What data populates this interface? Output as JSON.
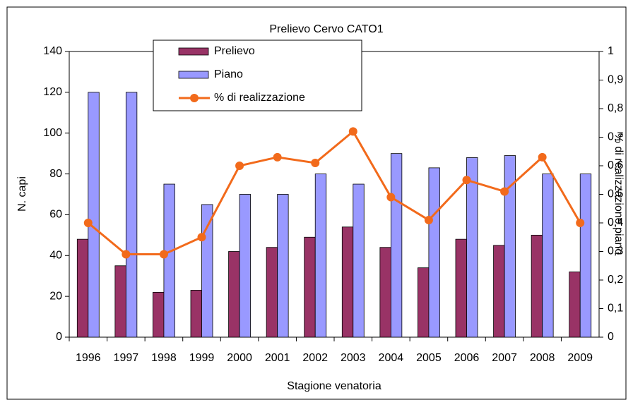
{
  "chart_data": {
    "type": "bar_line",
    "title": "Prelievo Cervo CATO1",
    "xlabel": "Stagione venatoria",
    "ylabel": "N. capi",
    "y2label": "% di realizzazione piano",
    "categories": [
      "1996",
      "1997",
      "1998",
      "1999",
      "2000",
      "2001",
      "2002",
      "2003",
      "2004",
      "2005",
      "2006",
      "2007",
      "2008",
      "2009"
    ],
    "series": [
      {
        "name": "Prelievo",
        "type": "bar",
        "color": "#993366",
        "values": [
          48,
          35,
          22,
          23,
          42,
          44,
          49,
          54,
          44,
          34,
          48,
          45,
          50,
          32
        ]
      },
      {
        "name": "Piano",
        "type": "bar",
        "color": "#9999ff",
        "values": [
          120,
          120,
          75,
          65,
          70,
          70,
          80,
          75,
          90,
          83,
          88,
          89,
          80,
          80
        ]
      },
      {
        "name": "% di realizzazione",
        "type": "line",
        "axis": "y2",
        "color": "#f26a1b",
        "values": [
          0.4,
          0.29,
          0.29,
          0.35,
          0.6,
          0.63,
          0.61,
          0.72,
          0.49,
          0.41,
          0.55,
          0.51,
          0.63,
          0.4
        ]
      }
    ],
    "ylim": [
      0,
      140
    ],
    "yticks": [
      0,
      20,
      40,
      60,
      80,
      100,
      120,
      140
    ],
    "y2lim": [
      0,
      1
    ],
    "y2ticks": [
      0,
      {
        "value": 0.1,
        "label": "0,1"
      },
      {
        "value": 0.2,
        "label": "0,2"
      },
      {
        "value": 0.3,
        "label": "0,3"
      },
      {
        "value": 0.4,
        "label": "0,4"
      },
      {
        "value": 0.5,
        "label": "0,5"
      },
      {
        "value": 0.6,
        "label": "0,6"
      },
      {
        "value": 0.7,
        "label": "0,7"
      },
      {
        "value": 0.8,
        "label": "0,8"
      },
      {
        "value": 0.9,
        "label": "0,9"
      },
      1
    ],
    "legend": "top-left"
  }
}
